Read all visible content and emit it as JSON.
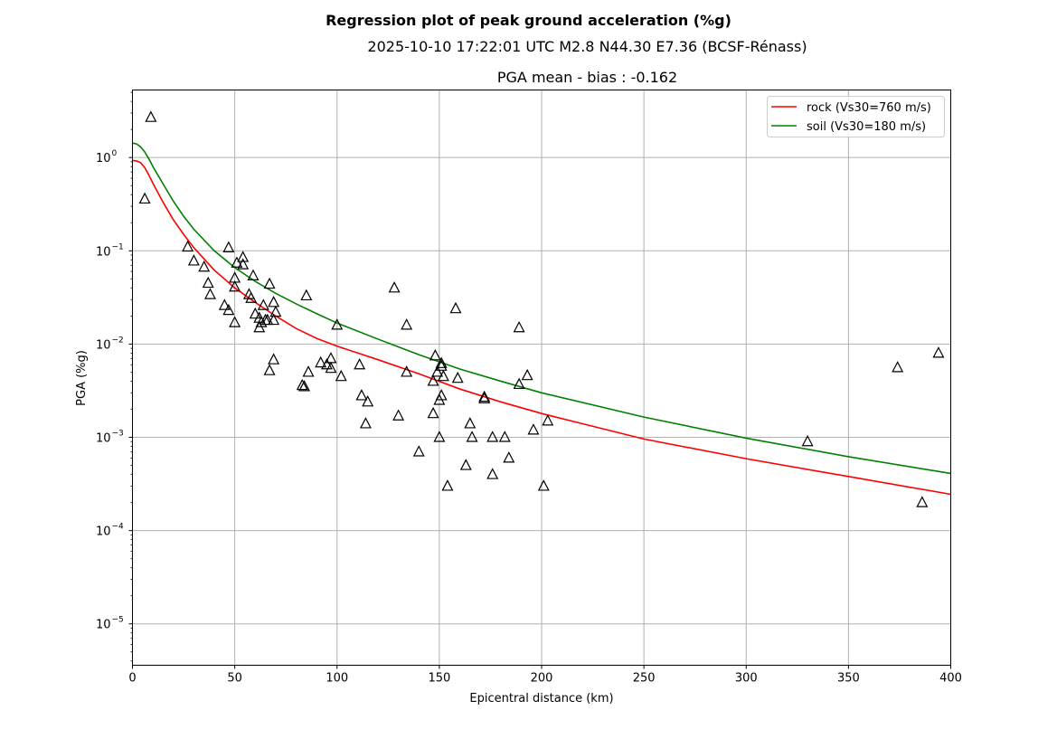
{
  "figure": {
    "suptitle": "Regression plot of peak ground acceleration (%g)",
    "subtitle": "2025-10-10 17:22:01 UTC M2.8 N44.30 E7.36 (BCSF-Rénass)",
    "axes_title": "PGA mean - bias : -0.162"
  },
  "chart_data": {
    "type": "scatter",
    "title": "PGA mean - bias : -0.162",
    "xlabel": "Epicentral distance (km)",
    "ylabel": "PGA (%g)",
    "xlim": [
      0,
      400
    ],
    "ylim": [
      3.6e-06,
      5.3
    ],
    "yscale": "log",
    "grid": true,
    "legend_position": "upper right",
    "x_ticks": [
      "0",
      "50",
      "100",
      "150",
      "200",
      "250",
      "300",
      "350",
      "400"
    ],
    "y_ticks": [
      {
        "value": 1e-05,
        "base": "10",
        "exp": "−5"
      },
      {
        "value": 0.0001,
        "base": "10",
        "exp": "−4"
      },
      {
        "value": 0.001,
        "base": "10",
        "exp": "−3"
      },
      {
        "value": 0.01,
        "base": "10",
        "exp": "−2"
      },
      {
        "value": 0.1,
        "base": "10",
        "exp": "−1"
      },
      {
        "value": 1,
        "base": "10",
        "exp": "0"
      }
    ],
    "series": [
      {
        "name": "rock (Vs30=760 m/s)",
        "kind": "line",
        "color": "#ff0000",
        "x": [
          0,
          2,
          4,
          6,
          8,
          10,
          15,
          20,
          25,
          30,
          40,
          50,
          60,
          70,
          80,
          90,
          100,
          120,
          140,
          160,
          180,
          200,
          250,
          300,
          350,
          400
        ],
        "y": [
          0.93,
          0.92,
          0.88,
          0.78,
          0.65,
          0.53,
          0.33,
          0.215,
          0.15,
          0.108,
          0.062,
          0.04,
          0.028,
          0.02,
          0.0147,
          0.0115,
          0.0095,
          0.0068,
          0.0048,
          0.0033,
          0.0024,
          0.0018,
          0.00096,
          0.00059,
          0.00038,
          0.000245
        ]
      },
      {
        "name": "soil (Vs30=180 m/s)",
        "kind": "line",
        "color": "#008000",
        "x": [
          0,
          2,
          4,
          6,
          8,
          10,
          15,
          20,
          25,
          30,
          40,
          50,
          60,
          70,
          80,
          90,
          100,
          120,
          140,
          160,
          180,
          200,
          250,
          300,
          350,
          400
        ],
        "y": [
          1.43,
          1.4,
          1.3,
          1.15,
          0.97,
          0.8,
          0.52,
          0.34,
          0.235,
          0.17,
          0.1,
          0.066,
          0.047,
          0.035,
          0.027,
          0.0212,
          0.0168,
          0.0113,
          0.0077,
          0.0054,
          0.004,
          0.003,
          0.00165,
          0.00098,
          0.00062,
          0.00041
        ]
      },
      {
        "name": "stations",
        "kind": "scatter",
        "marker": "triangle",
        "color": "#000000",
        "points": [
          [
            9,
            2.7
          ],
          [
            6,
            0.36
          ],
          [
            27,
            0.11
          ],
          [
            30,
            0.078
          ],
          [
            35,
            0.067
          ],
          [
            37,
            0.045
          ],
          [
            38,
            0.034
          ],
          [
            45,
            0.026
          ],
          [
            47,
            0.108
          ],
          [
            47,
            0.023
          ],
          [
            50,
            0.051
          ],
          [
            50,
            0.041
          ],
          [
            50,
            0.017
          ],
          [
            51,
            0.074
          ],
          [
            54,
            0.085
          ],
          [
            54,
            0.071
          ],
          [
            57,
            0.034
          ],
          [
            58,
            0.031
          ],
          [
            59,
            0.054
          ],
          [
            60,
            0.021
          ],
          [
            62,
            0.019
          ],
          [
            62,
            0.015
          ],
          [
            63,
            0.017
          ],
          [
            64,
            0.026
          ],
          [
            65,
            0.018
          ],
          [
            66,
            0.018
          ],
          [
            67,
            0.044
          ],
          [
            67,
            0.0052
          ],
          [
            69,
            0.018
          ],
          [
            69,
            0.0068
          ],
          [
            69,
            0.028
          ],
          [
            70,
            0.022
          ],
          [
            83,
            0.0036
          ],
          [
            84,
            0.0035
          ],
          [
            85,
            0.033
          ],
          [
            86,
            0.005
          ],
          [
            92,
            0.0063
          ],
          [
            95,
            0.006
          ],
          [
            97,
            0.0055
          ],
          [
            97,
            0.007
          ],
          [
            100,
            0.016
          ],
          [
            102,
            0.0045
          ],
          [
            111,
            0.006
          ],
          [
            112,
            0.0028
          ],
          [
            114,
            0.0014
          ],
          [
            115,
            0.0024
          ],
          [
            128,
            0.04
          ],
          [
            130,
            0.0017
          ],
          [
            134,
            0.016
          ],
          [
            134,
            0.005
          ],
          [
            140,
            0.0007
          ],
          [
            147,
            0.0018
          ],
          [
            147,
            0.004
          ],
          [
            148,
            0.0075
          ],
          [
            149,
            0.005
          ],
          [
            150,
            0.0025
          ],
          [
            150,
            0.001
          ],
          [
            151,
            0.0062
          ],
          [
            151,
            0.0058
          ],
          [
            151,
            0.0028
          ],
          [
            152,
            0.0045
          ],
          [
            154,
            0.0003
          ],
          [
            158,
            0.024
          ],
          [
            159,
            0.0043
          ],
          [
            163,
            0.0005
          ],
          [
            165,
            0.0014
          ],
          [
            166,
            0.001
          ],
          [
            172,
            0.0027
          ],
          [
            172,
            0.0026
          ],
          [
            176,
            0.001
          ],
          [
            176,
            0.0004
          ],
          [
            182,
            0.001
          ],
          [
            184,
            0.0006
          ],
          [
            189,
            0.015
          ],
          [
            189,
            0.0037
          ],
          [
            193,
            0.0046
          ],
          [
            196,
            0.0012
          ],
          [
            201,
            0.0003
          ],
          [
            203,
            0.0015
          ],
          [
            330,
            0.0009
          ],
          [
            374,
            0.0056
          ],
          [
            386,
            0.0002
          ],
          [
            394,
            0.008
          ]
        ]
      }
    ]
  }
}
